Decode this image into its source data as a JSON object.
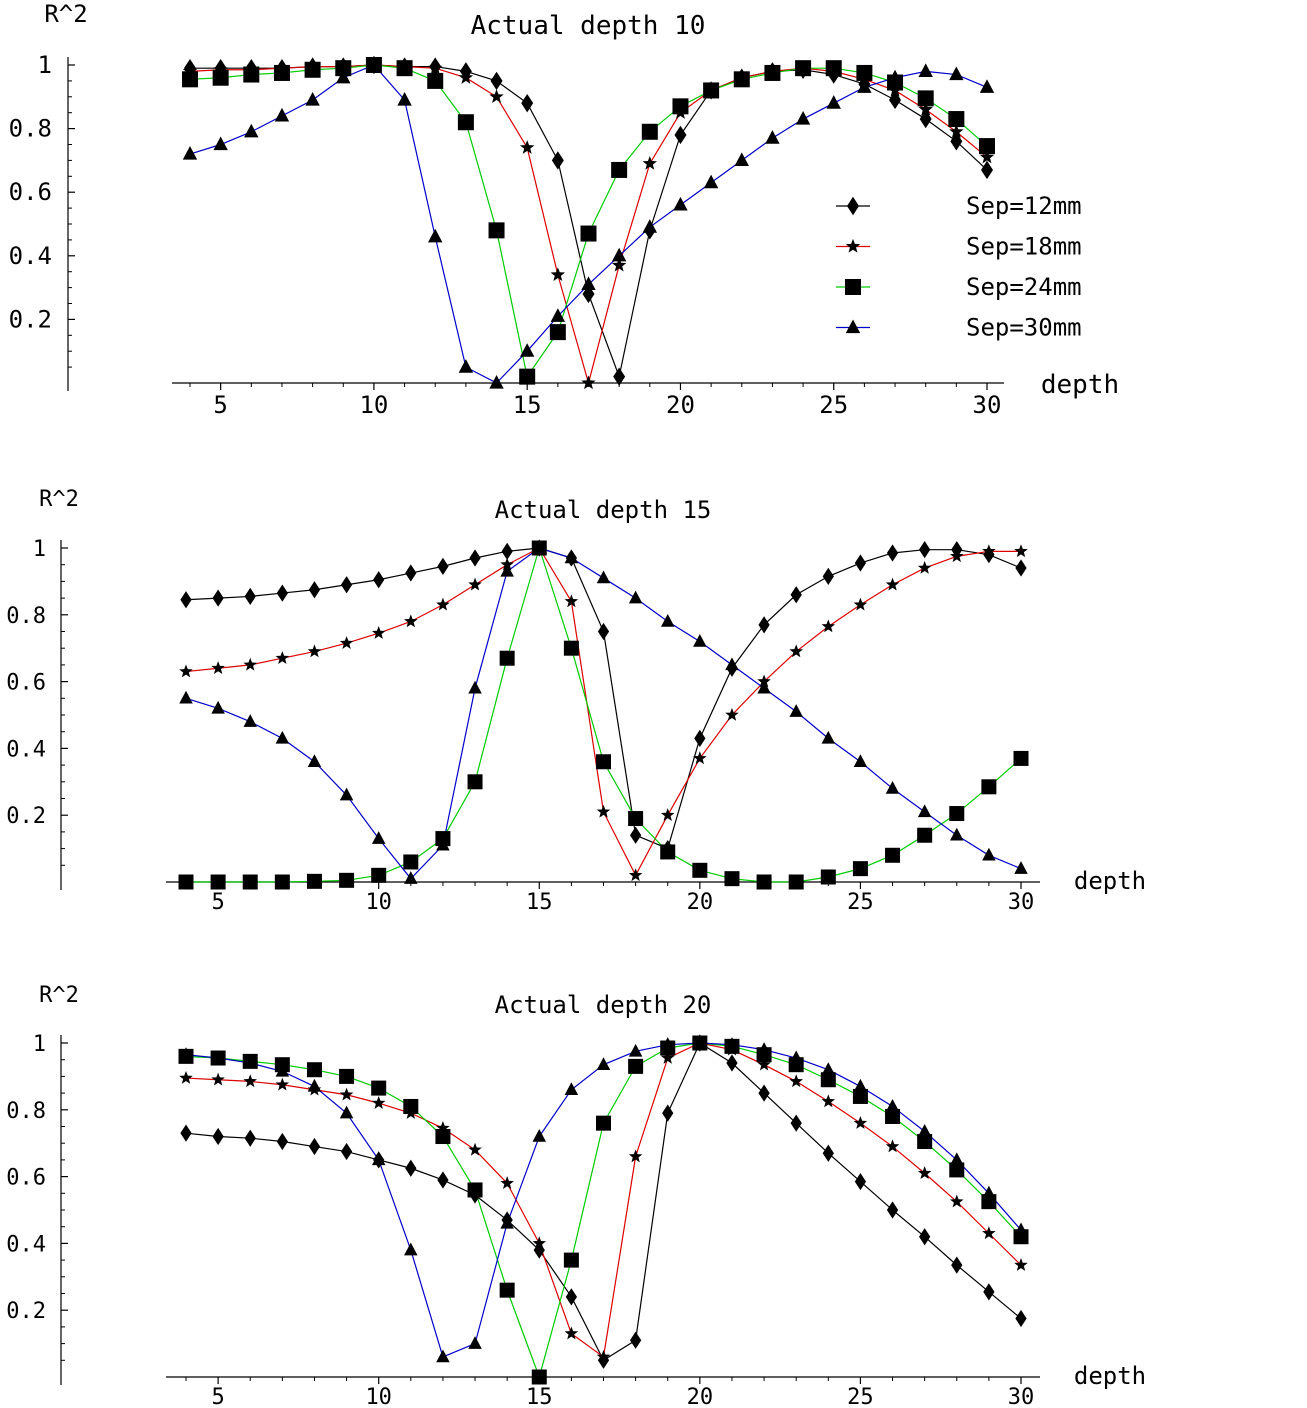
{
  "chart_data": [
    {
      "type": "line",
      "title": "Actual depth 10",
      "xlabel": "depth",
      "ylabel": "R^2",
      "xlim": [
        4,
        30
      ],
      "ylim": [
        0,
        1
      ],
      "xticks": [
        5,
        10,
        15,
        20,
        25,
        30
      ],
      "yticks": [
        0.2,
        0.4,
        0.6,
        0.8,
        1
      ],
      "ytick_labels": [
        "0.2",
        "0.4",
        "0.6",
        "0.8",
        "1"
      ],
      "legend_position": "right, mid",
      "x": [
        4,
        5,
        6,
        7,
        8,
        9,
        10,
        11,
        12,
        13,
        14,
        15,
        16,
        17,
        18,
        19,
        20,
        21,
        22,
        23,
        24,
        25,
        26,
        27,
        28,
        29,
        30
      ],
      "series": [
        {
          "name": "Sep=12mm",
          "marker": "diamond",
          "color": "#000000",
          "values": [
            0.99,
            0.99,
            0.99,
            0.99,
            0.995,
            0.995,
            1.0,
            0.995,
            0.995,
            0.98,
            0.95,
            0.88,
            0.7,
            0.28,
            0.02,
            0.48,
            0.78,
            0.92,
            0.96,
            0.98,
            0.985,
            0.97,
            0.94,
            0.89,
            0.83,
            0.76,
            0.67
          ]
        },
        {
          "name": "Sep=18mm",
          "marker": "star",
          "color": "#dd0000",
          "values": [
            0.98,
            0.985,
            0.985,
            0.99,
            0.995,
            0.995,
            1.0,
            0.995,
            0.99,
            0.96,
            0.9,
            0.74,
            0.34,
            0.0,
            0.37,
            0.69,
            0.85,
            0.92,
            0.96,
            0.98,
            0.99,
            0.98,
            0.955,
            0.92,
            0.86,
            0.79,
            0.71
          ]
        },
        {
          "name": "Sep=24mm",
          "marker": "square",
          "color": "#00cc00",
          "values": [
            0.955,
            0.96,
            0.97,
            0.975,
            0.985,
            0.99,
            1.0,
            0.99,
            0.95,
            0.82,
            0.48,
            0.02,
            0.16,
            0.47,
            0.67,
            0.79,
            0.87,
            0.92,
            0.955,
            0.975,
            0.99,
            0.99,
            0.975,
            0.945,
            0.895,
            0.83,
            0.745
          ]
        },
        {
          "name": "Sep=30mm",
          "marker": "triangle",
          "color": "#0000cc",
          "values": [
            0.72,
            0.75,
            0.79,
            0.84,
            0.89,
            0.96,
            1.0,
            0.89,
            0.46,
            0.05,
            0.0,
            0.1,
            0.21,
            0.31,
            0.4,
            0.49,
            0.56,
            0.63,
            0.7,
            0.77,
            0.83,
            0.88,
            0.93,
            0.96,
            0.98,
            0.97,
            0.93
          ]
        }
      ]
    },
    {
      "type": "line",
      "title": "Actual depth 15",
      "xlabel": "depth",
      "ylabel": "R^2",
      "xlim": [
        4,
        30
      ],
      "ylim": [
        0,
        1
      ],
      "xticks": [
        5,
        10,
        15,
        20,
        25,
        30
      ],
      "yticks": [
        0.2,
        0.4,
        0.6,
        0.8,
        1
      ],
      "ytick_labels": [
        "0.2",
        "0.4",
        "0.6",
        "0.8",
        "1"
      ],
      "x": [
        4,
        5,
        6,
        7,
        8,
        9,
        10,
        11,
        12,
        13,
        14,
        15,
        16,
        17,
        18,
        19,
        20,
        21,
        22,
        23,
        24,
        25,
        26,
        27,
        28,
        29,
        30
      ],
      "series": [
        {
          "name": "Sep=12mm",
          "marker": "diamond",
          "color": "#000000",
          "values": [
            0.845,
            0.85,
            0.855,
            0.865,
            0.875,
            0.89,
            0.905,
            0.925,
            0.945,
            0.97,
            0.99,
            1.0,
            0.97,
            0.75,
            0.14,
            0.1,
            0.43,
            0.64,
            0.77,
            0.86,
            0.915,
            0.955,
            0.985,
            0.995,
            0.995,
            0.98,
            0.94
          ]
        },
        {
          "name": "Sep=18mm",
          "marker": "star",
          "color": "#dd0000",
          "values": [
            0.63,
            0.64,
            0.65,
            0.67,
            0.69,
            0.715,
            0.745,
            0.78,
            0.83,
            0.89,
            0.95,
            1.0,
            0.84,
            0.21,
            0.02,
            0.2,
            0.37,
            0.5,
            0.6,
            0.69,
            0.765,
            0.83,
            0.89,
            0.94,
            0.975,
            0.99,
            0.99
          ]
        },
        {
          "name": "Sep=24mm",
          "marker": "square",
          "color": "#00cc00",
          "values": [
            0.0,
            0.0,
            0.0,
            0.0,
            0.002,
            0.005,
            0.02,
            0.06,
            0.13,
            0.3,
            0.67,
            1.0,
            0.7,
            0.36,
            0.19,
            0.09,
            0.035,
            0.01,
            0.0,
            0.0,
            0.015,
            0.04,
            0.08,
            0.14,
            0.205,
            0.285,
            0.37
          ]
        },
        {
          "name": "Sep=30mm",
          "marker": "triangle",
          "color": "#0000cc",
          "values": [
            0.55,
            0.52,
            0.48,
            0.43,
            0.36,
            0.26,
            0.13,
            0.01,
            0.11,
            0.58,
            0.93,
            1.0,
            0.97,
            0.91,
            0.85,
            0.78,
            0.72,
            0.65,
            0.58,
            0.51,
            0.43,
            0.36,
            0.28,
            0.21,
            0.14,
            0.08,
            0.04
          ]
        }
      ]
    },
    {
      "type": "line",
      "title": "Actual depth 20",
      "xlabel": "depth",
      "ylabel": "R^2",
      "xlim": [
        4,
        30
      ],
      "ylim": [
        0,
        1
      ],
      "xticks": [
        5,
        10,
        15,
        20,
        25,
        30
      ],
      "yticks": [
        0.2,
        0.4,
        0.6,
        0.8,
        1
      ],
      "ytick_labels": [
        "0.2",
        "0.4",
        "0.6",
        "0.8",
        "1"
      ],
      "x": [
        4,
        5,
        6,
        7,
        8,
        9,
        10,
        11,
        12,
        13,
        14,
        15,
        16,
        17,
        18,
        19,
        20,
        21,
        22,
        23,
        24,
        25,
        26,
        27,
        28,
        29,
        30
      ],
      "series": [
        {
          "name": "Sep=12mm",
          "marker": "diamond",
          "color": "#000000",
          "values": [
            0.73,
            0.72,
            0.715,
            0.705,
            0.69,
            0.675,
            0.65,
            0.625,
            0.59,
            0.545,
            0.47,
            0.38,
            0.24,
            0.05,
            0.11,
            0.79,
            1.0,
            0.94,
            0.85,
            0.76,
            0.67,
            0.585,
            0.5,
            0.42,
            0.335,
            0.255,
            0.175
          ]
        },
        {
          "name": "Sep=18mm",
          "marker": "star",
          "color": "#dd0000",
          "values": [
            0.895,
            0.89,
            0.885,
            0.875,
            0.86,
            0.845,
            0.82,
            0.79,
            0.745,
            0.68,
            0.58,
            0.4,
            0.13,
            0.06,
            0.66,
            0.955,
            1.0,
            0.98,
            0.935,
            0.885,
            0.825,
            0.76,
            0.69,
            0.61,
            0.525,
            0.43,
            0.335
          ]
        },
        {
          "name": "Sep=24mm",
          "marker": "square",
          "color": "#00cc00",
          "values": [
            0.96,
            0.955,
            0.945,
            0.935,
            0.92,
            0.9,
            0.865,
            0.81,
            0.72,
            0.56,
            0.26,
            0.0,
            0.35,
            0.76,
            0.93,
            0.985,
            1.0,
            0.99,
            0.965,
            0.935,
            0.89,
            0.84,
            0.78,
            0.705,
            0.62,
            0.525,
            0.42
          ]
        },
        {
          "name": "Sep=30mm",
          "marker": "triangle",
          "color": "#0000cc",
          "values": [
            0.965,
            0.955,
            0.94,
            0.915,
            0.87,
            0.79,
            0.65,
            0.38,
            0.06,
            0.1,
            0.46,
            0.72,
            0.86,
            0.935,
            0.975,
            0.995,
            1.0,
            0.995,
            0.98,
            0.955,
            0.92,
            0.87,
            0.81,
            0.735,
            0.65,
            0.55,
            0.44
          ]
        }
      ]
    }
  ]
}
